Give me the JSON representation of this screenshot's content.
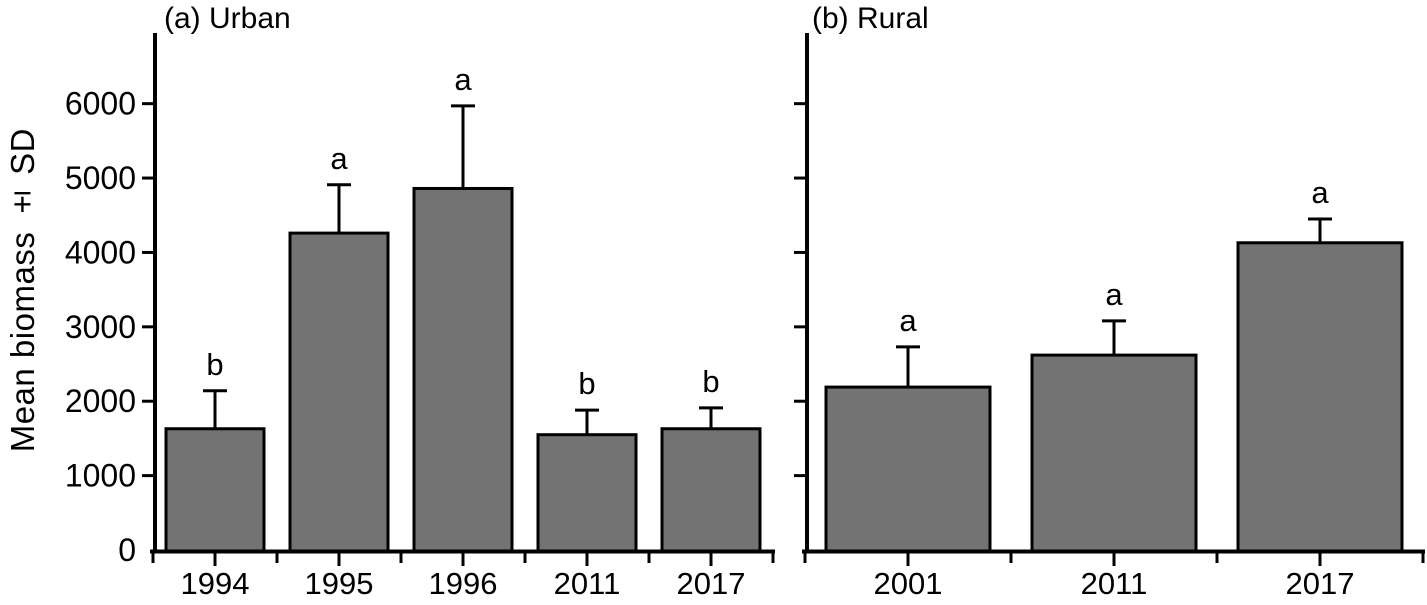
{
  "figure": {
    "ylabel": "Mean biomass ± SD"
  },
  "chart_data": [
    {
      "type": "bar",
      "title": "(a) Urban",
      "categories": [
        "1994",
        "1995",
        "1996",
        "2011",
        "2017"
      ],
      "values": [
        1630,
        4260,
        4860,
        1550,
        1630
      ],
      "errors_sd": [
        510,
        650,
        1110,
        330,
        280
      ],
      "sig_letters": [
        "b",
        "a",
        "a",
        "b",
        "b"
      ],
      "xlabel": "",
      "ylabel": "Mean biomass ± SD",
      "yticks": [
        0,
        1000,
        2000,
        3000,
        4000,
        5000,
        6000
      ],
      "ytick_labels": [
        "0",
        "1000",
        "2000",
        "3000",
        "4000",
        "5000",
        "6000"
      ],
      "ylim": [
        0,
        6950
      ],
      "show_ytick_labels": true,
      "grid": false,
      "legend": "none",
      "bar_color": "#737373",
      "bar_border_color": "#000000",
      "error_bar_color": "#000000",
      "text_color": "#000000"
    },
    {
      "type": "bar",
      "title": "(b) Rural",
      "categories": [
        "2001",
        "2011",
        "2017"
      ],
      "values": [
        2190,
        2620,
        4130
      ],
      "errors_sd": [
        540,
        460,
        320
      ],
      "sig_letters": [
        "a",
        "a",
        "a"
      ],
      "xlabel": "",
      "ylabel": "",
      "yticks": [
        0,
        1000,
        2000,
        3000,
        4000,
        5000,
        6000
      ],
      "ytick_labels": [],
      "ylim": [
        0,
        6950
      ],
      "show_ytick_labels": false,
      "grid": false,
      "legend": "none",
      "bar_color": "#737373",
      "bar_border_color": "#000000",
      "error_bar_color": "#000000",
      "text_color": "#000000"
    }
  ]
}
